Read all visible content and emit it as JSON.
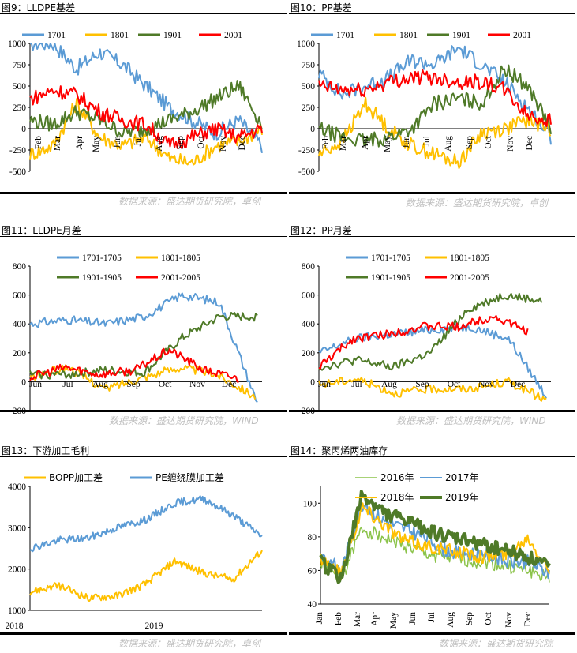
{
  "colors": {
    "blue": "#5b9bd5",
    "yellow": "#ffc000",
    "green": "#4f7a28",
    "red": "#ff0000",
    "lightgreen": "#8bc34a",
    "source": "#bfbfbf"
  },
  "charts": [
    {
      "id": "c9",
      "title": "图9：LLDPE基差",
      "source": "数据来源：盛达期货研究院，卓创",
      "legend": [
        "1701",
        "1801",
        "1901",
        "2001"
      ],
      "yticks": [
        "1000",
        "750",
        "500",
        "250",
        "0",
        "-250",
        "-500"
      ],
      "xticks": [
        "Feb",
        "Mar",
        "Apr",
        "May",
        "Jun",
        "Jul",
        "Aug",
        "Sep",
        "Oct",
        "Nov",
        "Dec"
      ]
    },
    {
      "id": "c10",
      "title": "图10：PP基差",
      "source": "数据来源：盛达期货研究院，卓创",
      "legend": [
        "1701",
        "1801",
        "1901",
        "2001"
      ],
      "yticks": [
        "1000",
        "750",
        "500",
        "250",
        "0",
        "-250",
        "-500"
      ],
      "xticks": [
        "Feb",
        "Mar",
        "Apr",
        "May",
        "Jun",
        "Jul",
        "Aug",
        "Sep",
        "Oct",
        "Nov",
        "Dec"
      ]
    },
    {
      "id": "c11",
      "title": "图11：LLDPE月差",
      "source": "数据来源：盛达期货研究院，WIND",
      "legend": [
        "1701-1705",
        "1801-1805",
        "1901-1905",
        "2001-2005"
      ],
      "yticks": [
        "800",
        "600",
        "400",
        "200",
        "0",
        "-200"
      ],
      "xticks": [
        "Jun",
        "Jul",
        "Aug",
        "Sep",
        "Oct",
        "Nov",
        "Dec"
      ]
    },
    {
      "id": "c12",
      "title": "图12：PP月差",
      "source": "数据来源：盛达期货研究院，WIND",
      "legend": [
        "1701-1705",
        "1801-1805",
        "1901-1905",
        "2001-2005"
      ],
      "yticks": [
        "800",
        "600",
        "400",
        "200",
        "0",
        "-200"
      ],
      "xticks": [
        "Jun",
        "Jul",
        "Aug",
        "Sep",
        "Oct",
        "Nov",
        "Dec"
      ]
    },
    {
      "id": "c13",
      "title": "图13：下游加工毛利",
      "source": "数据来源：盛达期货研究院，卓创",
      "legend": [
        "BOPP加工差",
        "PE缠绕膜加工差"
      ],
      "yticks": [
        "4000",
        "3000",
        "2000",
        "1000"
      ],
      "xticks": [
        "2018",
        "2019"
      ]
    },
    {
      "id": "c14",
      "title": "图14：聚丙烯两油库存",
      "source": "数据来源：盛达期货研究院",
      "legend": [
        "2016年",
        "2017年",
        "2018年",
        "2019年"
      ],
      "yticks": [
        "100",
        "80",
        "60",
        "40"
      ],
      "xticks": [
        "Jan",
        "Feb",
        "Mar",
        "Apr",
        "May",
        "Jun",
        "Jul",
        "Aug",
        "Sep",
        "Oct",
        "Nov",
        "Dec"
      ]
    }
  ],
  "chart_data": [
    {
      "type": "line",
      "title": "图9：LLDPE基差",
      "ylim": [
        -500,
        1000
      ],
      "x": [
        "Feb",
        "Mar",
        "Apr",
        "May",
        "Jun",
        "Jul",
        "Aug",
        "Sep",
        "Oct",
        "Nov",
        "Dec"
      ],
      "series": [
        {
          "name": "1701",
          "values": [
            1000,
            1000,
            700,
            900,
            750,
            500,
            250,
            100,
            -50,
            100,
            -200
          ]
        },
        {
          "name": "1801",
          "values": [
            -300,
            -200,
            300,
            -100,
            -200,
            -100,
            -350,
            -400,
            -200,
            -150,
            0
          ]
        },
        {
          "name": "1901",
          "values": [
            100,
            50,
            200,
            100,
            -50,
            0,
            100,
            200,
            350,
            500,
            50
          ]
        },
        {
          "name": "2001",
          "values": [
            350,
            450,
            400,
            200,
            100,
            50,
            -200,
            -100,
            0,
            -100,
            0
          ]
        }
      ]
    },
    {
      "type": "line",
      "title": "图10：PP基差",
      "ylim": [
        -500,
        1000
      ],
      "x": [
        "Feb",
        "Mar",
        "Apr",
        "May",
        "Jun",
        "Jul",
        "Aug",
        "Sep",
        "Oct",
        "Nov",
        "Dec"
      ],
      "series": [
        {
          "name": "1701",
          "values": [
            650,
            400,
            500,
            600,
            800,
            750,
            950,
            750,
            550,
            250,
            -100
          ]
        },
        {
          "name": "1801",
          "values": [
            -300,
            -150,
            300,
            0,
            -200,
            -300,
            -400,
            -50,
            0,
            100,
            0
          ]
        },
        {
          "name": "1901",
          "values": [
            0,
            -100,
            -150,
            -100,
            0,
            300,
            350,
            300,
            700,
            500,
            0
          ]
        },
        {
          "name": "2001",
          "values": [
            500,
            450,
            450,
            550,
            600,
            600,
            550,
            550,
            450,
            150,
            100
          ]
        }
      ]
    },
    {
      "type": "line",
      "title": "图11：LLDPE月差",
      "ylim": [
        -200,
        800
      ],
      "x": [
        "Jun",
        "Jul",
        "Aug",
        "Sep",
        "Oct",
        "Nov",
        "Dec"
      ],
      "series": [
        {
          "name": "1701-1705",
          "values": [
            400,
            430,
            400,
            450,
            600,
            550,
            -150
          ]
        },
        {
          "name": "1801-1805",
          "values": [
            30,
            100,
            -50,
            30,
            100,
            50,
            -100
          ]
        },
        {
          "name": "1901-1905",
          "values": [
            50,
            50,
            80,
            60,
            300,
            450,
            450
          ]
        },
        {
          "name": "2001-2005",
          "values": [
            30,
            100,
            50,
            80,
            220,
            80,
            20
          ]
        }
      ]
    },
    {
      "type": "line",
      "title": "图12：PP月差",
      "ylim": [
        -200,
        800
      ],
      "x": [
        "Jun",
        "Jul",
        "Aug",
        "Sep",
        "Oct",
        "Nov",
        "Dec"
      ],
      "series": [
        {
          "name": "1701-1705",
          "values": [
            200,
            300,
            330,
            360,
            380,
            300,
            -100
          ]
        },
        {
          "name": "1801-1805",
          "values": [
            -20,
            20,
            -80,
            -50,
            -50,
            0,
            -130
          ]
        },
        {
          "name": "1901-1905",
          "values": [
            100,
            150,
            100,
            200,
            500,
            600,
            560
          ]
        },
        {
          "name": "2001-2005",
          "values": [
            100,
            300,
            330,
            380,
            380,
            450,
            350
          ]
        }
      ]
    },
    {
      "type": "line",
      "title": "图13：下游加工毛利",
      "ylim": [
        1000,
        4000
      ],
      "x": [
        "2018-01",
        "2018-04",
        "2018-07",
        "2018-10",
        "2019-01",
        "2019-04",
        "2019-07",
        "2019-10",
        "2019-12"
      ],
      "series": [
        {
          "name": "BOPP加工差",
          "values": [
            1450,
            1600,
            1300,
            1350,
            1650,
            2200,
            1900,
            1750,
            2450
          ]
        },
        {
          "name": "PE缠绕膜加工差",
          "values": [
            2500,
            2700,
            2750,
            3000,
            3200,
            3600,
            3700,
            3300,
            2800
          ]
        }
      ]
    },
    {
      "type": "line",
      "title": "图14：聚丙烯两油库存",
      "ylim": [
        40,
        110
      ],
      "x": [
        "Jan",
        "Feb",
        "Mar",
        "Apr",
        "May",
        "Jun",
        "Jul",
        "Aug",
        "Sep",
        "Oct",
        "Nov",
        "Dec"
      ],
      "series": [
        {
          "name": "2016年",
          "values": [
            65,
            55,
            85,
            80,
            75,
            70,
            68,
            66,
            65,
            62,
            60,
            55
          ]
        },
        {
          "name": "2017年",
          "values": [
            70,
            60,
            100,
            90,
            85,
            80,
            72,
            70,
            70,
            65,
            65,
            58
          ]
        },
        {
          "name": "2018年",
          "values": [
            68,
            58,
            98,
            88,
            78,
            75,
            72,
            70,
            68,
            70,
            80,
            60
          ]
        },
        {
          "name": "2019年",
          "values": [
            65,
            55,
            105,
            95,
            90,
            85,
            80,
            78,
            75,
            72,
            68,
            62
          ]
        }
      ]
    }
  ]
}
